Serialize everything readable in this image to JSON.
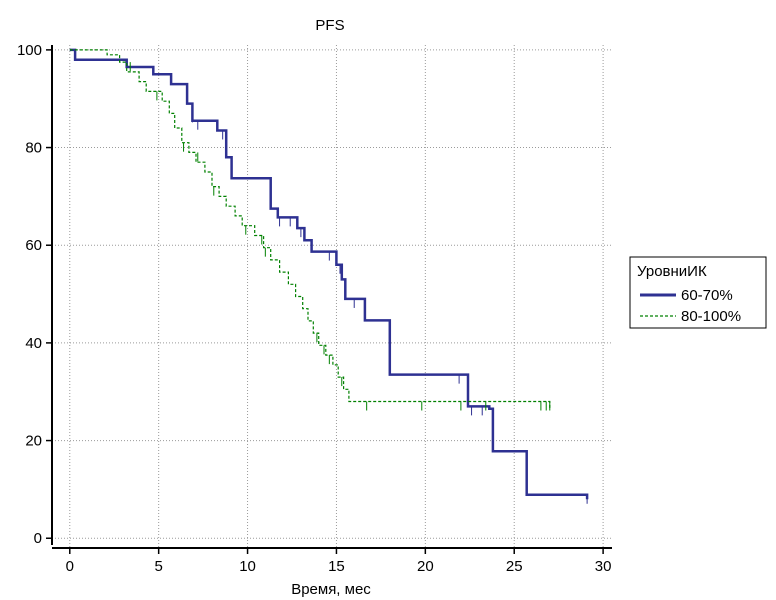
{
  "chart_data": {
    "type": "line",
    "title": "PFS",
    "xlabel": "Время, мес",
    "ylabel": "",
    "xlim": [
      -1,
      30.5
    ],
    "ylim": [
      -2,
      101
    ],
    "xticks": [
      0,
      5,
      10,
      15,
      20,
      25,
      30
    ],
    "yticks": [
      0,
      20,
      40,
      60,
      80,
      100
    ],
    "grid": true,
    "legend": {
      "title": "УровниИК",
      "placement": "right"
    },
    "series": [
      {
        "name": "60-70%",
        "color": "#2e3192",
        "style": "solid",
        "points": [
          [
            0,
            100
          ],
          [
            0.3,
            100
          ],
          [
            0.3,
            98
          ],
          [
            3.2,
            98
          ],
          [
            3.2,
            96.5
          ],
          [
            4.7,
            96.5
          ],
          [
            4.7,
            95
          ],
          [
            5.7,
            95
          ],
          [
            5.7,
            93
          ],
          [
            6.6,
            93
          ],
          [
            6.6,
            89
          ],
          [
            6.9,
            89
          ],
          [
            6.9,
            85.5
          ],
          [
            8.3,
            85.5
          ],
          [
            8.3,
            83.5
          ],
          [
            8.8,
            83.5
          ],
          [
            8.8,
            78
          ],
          [
            9.1,
            78
          ],
          [
            9.1,
            73.7
          ],
          [
            11.3,
            73.7
          ],
          [
            11.3,
            67.5
          ],
          [
            11.7,
            67.5
          ],
          [
            11.7,
            65.7
          ],
          [
            12.8,
            65.7
          ],
          [
            12.8,
            63.5
          ],
          [
            13.2,
            63.5
          ],
          [
            13.2,
            61
          ],
          [
            13.6,
            61
          ],
          [
            13.6,
            58.7
          ],
          [
            15.0,
            58.7
          ],
          [
            15.0,
            56
          ],
          [
            15.3,
            56
          ],
          [
            15.3,
            53
          ],
          [
            15.5,
            53
          ],
          [
            15.5,
            49
          ],
          [
            16.6,
            49
          ],
          [
            16.6,
            44.6
          ],
          [
            18.0,
            44.6
          ],
          [
            18.0,
            33.5
          ],
          [
            22.4,
            33.5
          ],
          [
            22.4,
            27
          ],
          [
            23.6,
            27
          ],
          [
            23.6,
            26.5
          ],
          [
            23.8,
            26.5
          ],
          [
            23.8,
            17.8
          ],
          [
            25.7,
            17.8
          ],
          [
            25.7,
            8.9
          ],
          [
            29.1,
            8.9
          ],
          [
            29.1,
            8
          ]
        ],
        "censored": [
          [
            6.9,
            87
          ],
          [
            7.2,
            85.5
          ],
          [
            8.6,
            83.5
          ],
          [
            11.8,
            65.7
          ],
          [
            12.4,
            65.7
          ],
          [
            13.0,
            63.5
          ],
          [
            14.6,
            58.7
          ],
          [
            15.2,
            56
          ],
          [
            16.0,
            49
          ],
          [
            21.9,
            33.5
          ],
          [
            22.6,
            27
          ],
          [
            23.2,
            27
          ],
          [
            29.1,
            8.9
          ]
        ]
      },
      {
        "name": "80-100%",
        "color": "#008000",
        "style": "dashed",
        "points": [
          [
            0,
            100
          ],
          [
            2.1,
            100
          ],
          [
            2.1,
            99
          ],
          [
            2.8,
            99
          ],
          [
            2.8,
            97.5
          ],
          [
            3.2,
            97.5
          ],
          [
            3.2,
            95.5
          ],
          [
            3.9,
            95.5
          ],
          [
            3.9,
            93.5
          ],
          [
            4.3,
            93.5
          ],
          [
            4.3,
            91.5
          ],
          [
            5.2,
            91.5
          ],
          [
            5.2,
            89.5
          ],
          [
            5.6,
            89.5
          ],
          [
            5.6,
            87
          ],
          [
            5.9,
            87
          ],
          [
            5.9,
            84
          ],
          [
            6.3,
            84
          ],
          [
            6.3,
            81
          ],
          [
            6.7,
            81
          ],
          [
            6.7,
            79
          ],
          [
            7.1,
            79
          ],
          [
            7.1,
            77
          ],
          [
            7.6,
            77
          ],
          [
            7.6,
            75
          ],
          [
            8.0,
            75
          ],
          [
            8.0,
            72
          ],
          [
            8.4,
            72
          ],
          [
            8.4,
            70
          ],
          [
            8.8,
            70
          ],
          [
            8.8,
            68
          ],
          [
            9.3,
            68
          ],
          [
            9.3,
            66
          ],
          [
            9.7,
            66
          ],
          [
            9.7,
            64
          ],
          [
            10.4,
            64
          ],
          [
            10.4,
            62
          ],
          [
            10.9,
            62
          ],
          [
            10.9,
            59.5
          ],
          [
            11.3,
            59.5
          ],
          [
            11.3,
            57
          ],
          [
            11.8,
            57
          ],
          [
            11.8,
            54.5
          ],
          [
            12.3,
            54.5
          ],
          [
            12.3,
            52
          ],
          [
            12.7,
            52
          ],
          [
            12.7,
            49.5
          ],
          [
            13.1,
            49.5
          ],
          [
            13.1,
            47
          ],
          [
            13.4,
            47
          ],
          [
            13.4,
            44.5
          ],
          [
            13.7,
            44.5
          ],
          [
            13.7,
            42
          ],
          [
            14.0,
            42
          ],
          [
            14.0,
            39.5
          ],
          [
            14.4,
            39.5
          ],
          [
            14.4,
            37.5
          ],
          [
            14.8,
            37.5
          ],
          [
            14.8,
            35.5
          ],
          [
            15.1,
            35.5
          ],
          [
            15.1,
            33
          ],
          [
            15.4,
            33
          ],
          [
            15.4,
            30.5
          ],
          [
            15.7,
            30.5
          ],
          [
            15.7,
            28
          ],
          [
            27.0,
            28
          ],
          [
            27.0,
            26.5
          ]
        ],
        "censored": [
          [
            3.4,
            97.5
          ],
          [
            4.9,
            91.5
          ],
          [
            6.4,
            81
          ],
          [
            7.2,
            79
          ],
          [
            8.1,
            72
          ],
          [
            9.9,
            64
          ],
          [
            10.8,
            62
          ],
          [
            11.0,
            59.5
          ],
          [
            13.9,
            42
          ],
          [
            14.3,
            39.5
          ],
          [
            14.6,
            37.5
          ],
          [
            15.3,
            33
          ],
          [
            16.7,
            28
          ],
          [
            19.8,
            28
          ],
          [
            22.0,
            28
          ],
          [
            23.4,
            28
          ],
          [
            26.5,
            28
          ],
          [
            26.8,
            28
          ],
          [
            27.0,
            28
          ]
        ]
      }
    ]
  }
}
